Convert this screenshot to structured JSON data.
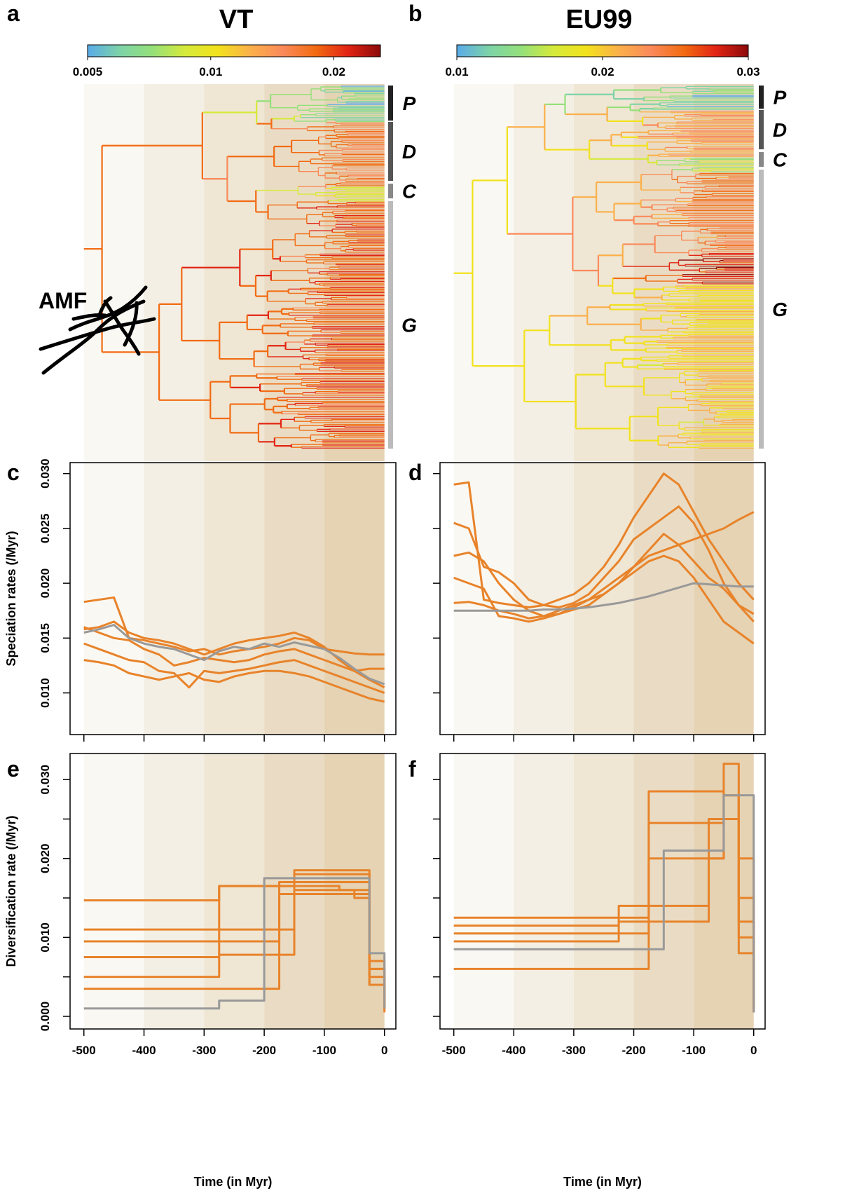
{
  "chart_data": [
    {
      "type": "tree",
      "panel": "a",
      "title": "VT",
      "xlim": [
        -523,
        19
      ],
      "shade_breaks": [
        -500,
        -400,
        -300,
        -200,
        -100,
        0
      ],
      "colorbar_lim": [
        0.005,
        0.026
      ],
      "colorbar_log": true,
      "colorbar_ticks": [
        0.005,
        0.01,
        0.02
      ],
      "clades": [
        "P",
        "D",
        "C",
        "G"
      ],
      "annotation": "AMF"
    },
    {
      "type": "tree",
      "panel": "b",
      "title": "EU99",
      "xlim": [
        -523,
        19
      ],
      "shade_breaks": [
        -500,
        -400,
        -300,
        -200,
        -100,
        0
      ],
      "colorbar_lim": [
        0.01,
        0.03
      ],
      "colorbar_log": false,
      "colorbar_ticks": [
        0.01,
        0.02,
        0.03
      ],
      "clades": [
        "P",
        "D",
        "C",
        "G"
      ]
    },
    {
      "type": "line",
      "panel": "c",
      "ylabel": "Speciation rates (/Myr)",
      "xlim": [
        -523,
        19
      ],
      "ylim": [
        0.0062,
        0.031
      ],
      "shade_breaks": [
        -500,
        -400,
        -300,
        -200,
        -100,
        0
      ],
      "xticks": [
        -500,
        -400,
        -300,
        -200,
        -100,
        0
      ],
      "show_xtick_labels": false,
      "yticks": [
        {
          "value": 0.01,
          "label": "0.010"
        },
        {
          "value": 0.015,
          "label": "0.015"
        },
        {
          "value": 0.02,
          "label": "0.020"
        },
        {
          "value": 0.025,
          "label": "0.025"
        },
        {
          "value": 0.03,
          "label": "0.030"
        }
      ],
      "x": [
        -500,
        -475,
        -450,
        -425,
        -400,
        -375,
        -350,
        -325,
        -300,
        -275,
        -250,
        -225,
        -200,
        -175,
        -150,
        -125,
        -100,
        -75,
        -50,
        -25,
        0
      ],
      "series": [
        {
          "color": "#e8832a",
          "values": [
            0.0183,
            0.0185,
            0.0187,
            0.015,
            0.0148,
            0.0145,
            0.0142,
            0.0138,
            0.014,
            0.0135,
            0.0138,
            0.014,
            0.0142,
            0.0145,
            0.015,
            0.0148,
            0.014,
            0.0138,
            0.0136,
            0.0135,
            0.0135
          ]
        },
        {
          "color": "#e8832a",
          "values": [
            0.016,
            0.0155,
            0.015,
            0.0148,
            0.014,
            0.0135,
            0.0125,
            0.0128,
            0.0132,
            0.013,
            0.0128,
            0.013,
            0.0135,
            0.0138,
            0.014,
            0.0135,
            0.013,
            0.0125,
            0.012,
            0.0122,
            0.0122
          ]
        },
        {
          "color": "#e8832a",
          "values": [
            0.0145,
            0.014,
            0.0135,
            0.013,
            0.0128,
            0.012,
            0.0118,
            0.0105,
            0.012,
            0.0118,
            0.012,
            0.0122,
            0.0125,
            0.0128,
            0.013,
            0.0125,
            0.012,
            0.0115,
            0.011,
            0.0105,
            0.01
          ]
        },
        {
          "color": "#e8832a",
          "values": [
            0.013,
            0.0128,
            0.0125,
            0.0118,
            0.0115,
            0.0112,
            0.0115,
            0.0118,
            0.0112,
            0.011,
            0.0115,
            0.0118,
            0.012,
            0.012,
            0.0118,
            0.0115,
            0.011,
            0.0105,
            0.01,
            0.0095,
            0.0092
          ]
        },
        {
          "color": "#e8832a",
          "values": [
            0.0158,
            0.016,
            0.0165,
            0.0155,
            0.015,
            0.0148,
            0.0145,
            0.014,
            0.0135,
            0.014,
            0.0145,
            0.0148,
            0.015,
            0.0152,
            0.0155,
            0.015,
            0.0142,
            0.013,
            0.012,
            0.0112,
            0.0105
          ]
        },
        {
          "color": "#999999",
          "values": [
            0.0155,
            0.0158,
            0.0162,
            0.015,
            0.0145,
            0.0142,
            0.014,
            0.0135,
            0.013,
            0.0138,
            0.0142,
            0.014,
            0.0145,
            0.0142,
            0.0146,
            0.0143,
            0.014,
            0.0132,
            0.0122,
            0.0113,
            0.0108
          ]
        }
      ]
    },
    {
      "type": "line",
      "panel": "d",
      "xlim": [
        -523,
        19
      ],
      "ylim": [
        0.0062,
        0.031
      ],
      "shade_breaks": [
        -500,
        -400,
        -300,
        -200,
        -100,
        0
      ],
      "xticks": [
        -500,
        -400,
        -300,
        -200,
        -100,
        0
      ],
      "show_xtick_labels": false,
      "yticks": [
        0.01,
        0.015,
        0.02,
        0.025,
        0.03
      ],
      "show_ytick_labels": false,
      "x": [
        -500,
        -475,
        -450,
        -425,
        -400,
        -375,
        -350,
        -325,
        -300,
        -275,
        -250,
        -225,
        -200,
        -175,
        -150,
        -125,
        -100,
        -75,
        -50,
        -25,
        0
      ],
      "series": [
        {
          "color": "#e8832a",
          "values": [
            0.029,
            0.0292,
            0.0185,
            0.0182,
            0.018,
            0.0178,
            0.018,
            0.0185,
            0.019,
            0.02,
            0.0215,
            0.0235,
            0.026,
            0.028,
            0.03,
            0.029,
            0.0265,
            0.024,
            0.022,
            0.02,
            0.0185
          ]
        },
        {
          "color": "#e8832a",
          "values": [
            0.0255,
            0.025,
            0.0215,
            0.021,
            0.02,
            0.0185,
            0.018,
            0.0178,
            0.0182,
            0.019,
            0.0205,
            0.022,
            0.024,
            0.025,
            0.026,
            0.027,
            0.0255,
            0.023,
            0.02,
            0.018,
            0.0165
          ]
        },
        {
          "color": "#e8832a",
          "values": [
            0.0225,
            0.0228,
            0.022,
            0.02,
            0.0185,
            0.0175,
            0.017,
            0.0172,
            0.0178,
            0.0185,
            0.0195,
            0.0205,
            0.0215,
            0.0225,
            0.023,
            0.0235,
            0.024,
            0.0245,
            0.025,
            0.0258,
            0.0265
          ]
        },
        {
          "color": "#e8832a",
          "values": [
            0.0205,
            0.02,
            0.0195,
            0.017,
            0.0168,
            0.0165,
            0.0168,
            0.0172,
            0.0176,
            0.018,
            0.019,
            0.02,
            0.021,
            0.022,
            0.0225,
            0.022,
            0.0205,
            0.0185,
            0.0165,
            0.0155,
            0.0145
          ]
        },
        {
          "color": "#e8832a",
          "values": [
            0.0182,
            0.0183,
            0.018,
            0.0175,
            0.0172,
            0.0168,
            0.017,
            0.0175,
            0.018,
            0.0185,
            0.019,
            0.02,
            0.0215,
            0.023,
            0.0245,
            0.0235,
            0.022,
            0.0205,
            0.0195,
            0.018,
            0.0172
          ]
        },
        {
          "color": "#999999",
          "values": [
            0.0175,
            0.0175,
            0.0175,
            0.0175,
            0.0175,
            0.0175,
            0.0176,
            0.0176,
            0.0177,
            0.0178,
            0.018,
            0.0182,
            0.0185,
            0.0188,
            0.0192,
            0.0196,
            0.02,
            0.0199,
            0.0198,
            0.0197,
            0.0197
          ]
        }
      ]
    },
    {
      "type": "step",
      "panel": "e",
      "ylabel": "Diversification rate (/Myr)",
      "xlabel": "Time (in Myr)",
      "xlim": [
        -523,
        19
      ],
      "ylim": [
        -0.0016,
        0.0333
      ],
      "shade_breaks": [
        -500,
        -400,
        -300,
        -200,
        -100,
        0
      ],
      "xticks": [
        -500,
        -400,
        -300,
        -200,
        -100,
        0
      ],
      "yticks": [
        {
          "value": 0,
          "label": "0.000"
        },
        {
          "value": 0.01,
          "label": "0.010"
        },
        {
          "value": 0.02,
          "label": "0.020"
        },
        {
          "value": 0.03,
          "label": "0.030"
        }
      ],
      "yminor_ticks": [
        0.005,
        0.015,
        0.025
      ],
      "x": [
        -500,
        -475,
        -450,
        -425,
        -400,
        -375,
        -350,
        -325,
        -300,
        -275,
        -250,
        -225,
        -200,
        -175,
        -150,
        -125,
        -100,
        -75,
        -50,
        -25,
        0
      ],
      "series": [
        {
          "color": "#e8832a",
          "values": [
            0.0147,
            0.0147,
            0.0147,
            0.0147,
            0.0147,
            0.0147,
            0.0147,
            0.0147,
            0.0147,
            0.0165,
            0.0165,
            0.0165,
            0.0165,
            0.0165,
            0.0165,
            0.0165,
            0.0165,
            0.016,
            0.015,
            0.006,
            0.001
          ]
        },
        {
          "color": "#e8832a",
          "values": [
            0.0095,
            0.0095,
            0.0095,
            0.0095,
            0.0095,
            0.0095,
            0.0095,
            0.0095,
            0.0095,
            0.0095,
            0.0095,
            0.0095,
            0.0095,
            0.0155,
            0.0155,
            0.0155,
            0.0155,
            0.0155,
            0.0155,
            0.007,
            0.001
          ]
        },
        {
          "color": "#e8832a",
          "values": [
            0.0075,
            0.0075,
            0.0075,
            0.0075,
            0.0075,
            0.0075,
            0.0075,
            0.0075,
            0.0075,
            0.0078,
            0.0078,
            0.0078,
            0.0078,
            0.0078,
            0.0185,
            0.0185,
            0.0185,
            0.0185,
            0.0185,
            0.004,
            0.0005
          ]
        },
        {
          "color": "#e8832a",
          "values": [
            0.011,
            0.011,
            0.011,
            0.011,
            0.011,
            0.011,
            0.011,
            0.011,
            0.011,
            0.011,
            0.011,
            0.011,
            0.011,
            0.011,
            0.016,
            0.016,
            0.016,
            0.016,
            0.016,
            0.005,
            0.0015
          ]
        },
        {
          "color": "#e8832a",
          "values": [
            0.0035,
            0.0035,
            0.0035,
            0.0035,
            0.0035,
            0.0035,
            0.0035,
            0.0035,
            0.0035,
            0.0035,
            0.0035,
            0.0035,
            0.0035,
            0.017,
            0.017,
            0.017,
            0.017,
            0.017,
            0.017,
            0.006,
            0.001
          ]
        },
        {
          "color": "#e8832a",
          "values": [
            0.005,
            0.005,
            0.005,
            0.005,
            0.005,
            0.005,
            0.005,
            0.005,
            0.005,
            0.0165,
            0.0165,
            0.0165,
            0.0165,
            0.0165,
            0.018,
            0.018,
            0.018,
            0.018,
            0.018,
            0.004,
            0.0008
          ]
        },
        {
          "color": "#999999",
          "values": [
            0.001,
            0.001,
            0.001,
            0.001,
            0.001,
            0.001,
            0.001,
            0.001,
            0.001,
            0.002,
            0.002,
            0.002,
            0.0175,
            0.0175,
            0.0175,
            0.0175,
            0.0175,
            0.0175,
            0.0175,
            0.008,
            0.001
          ]
        }
      ]
    },
    {
      "type": "step",
      "panel": "f",
      "xlabel": "Time (in Myr)",
      "xlim": [
        -523,
        19
      ],
      "ylim": [
        -0.0016,
        0.0333
      ],
      "shade_breaks": [
        -500,
        -400,
        -300,
        -200,
        -100,
        0
      ],
      "xticks": [
        -500,
        -400,
        -300,
        -200,
        -100,
        0
      ],
      "yticks": [
        0,
        0.01,
        0.02,
        0.03
      ],
      "show_ytick_labels": false,
      "yminor_ticks": [
        0.005,
        0.015,
        0.025
      ],
      "x": [
        -500,
        -475,
        -450,
        -425,
        -400,
        -375,
        -350,
        -325,
        -300,
        -275,
        -250,
        -225,
        -200,
        -175,
        -150,
        -125,
        -100,
        -75,
        -50,
        -25,
        0
      ],
      "series": [
        {
          "color": "#e8832a",
          "values": [
            0.0125,
            0.0125,
            0.0125,
            0.0125,
            0.0125,
            0.0125,
            0.0125,
            0.0125,
            0.0125,
            0.0125,
            0.0125,
            0.0125,
            0.0125,
            0.0245,
            0.0245,
            0.0245,
            0.0245,
            0.0245,
            0.032,
            0.02,
            0.001
          ]
        },
        {
          "color": "#e8832a",
          "values": [
            0.0105,
            0.0105,
            0.0105,
            0.0105,
            0.0105,
            0.0105,
            0.0105,
            0.0105,
            0.0105,
            0.0105,
            0.0105,
            0.0105,
            0.0105,
            0.02,
            0.02,
            0.02,
            0.02,
            0.02,
            0.028,
            0.015,
            0.0005
          ]
        },
        {
          "color": "#e8832a",
          "values": [
            0.0095,
            0.0095,
            0.0095,
            0.0095,
            0.0095,
            0.0095,
            0.0095,
            0.0095,
            0.0095,
            0.0095,
            0.0095,
            0.014,
            0.014,
            0.014,
            0.014,
            0.014,
            0.014,
            0.025,
            0.028,
            0.01,
            0.001
          ]
        },
        {
          "color": "#e8832a",
          "values": [
            0.006,
            0.006,
            0.006,
            0.006,
            0.006,
            0.006,
            0.006,
            0.006,
            0.006,
            0.006,
            0.006,
            0.006,
            0.006,
            0.0285,
            0.0285,
            0.0285,
            0.0285,
            0.0285,
            0.028,
            0.012,
            0.0005
          ]
        },
        {
          "color": "#e8832a",
          "values": [
            0.0115,
            0.0115,
            0.0115,
            0.0115,
            0.0115,
            0.0115,
            0.0115,
            0.0115,
            0.0115,
            0.0115,
            0.0115,
            0.012,
            0.012,
            0.012,
            0.012,
            0.012,
            0.012,
            0.02,
            0.025,
            0.008,
            0.001
          ]
        },
        {
          "color": "#999999",
          "values": [
            0.0085,
            0.0085,
            0.0085,
            0.0085,
            0.0085,
            0.0085,
            0.0085,
            0.0085,
            0.0085,
            0.0085,
            0.0085,
            0.0085,
            0.0085,
            0.0085,
            0.021,
            0.021,
            0.021,
            0.021,
            0.028,
            0.028,
            0.0005
          ]
        }
      ]
    }
  ]
}
